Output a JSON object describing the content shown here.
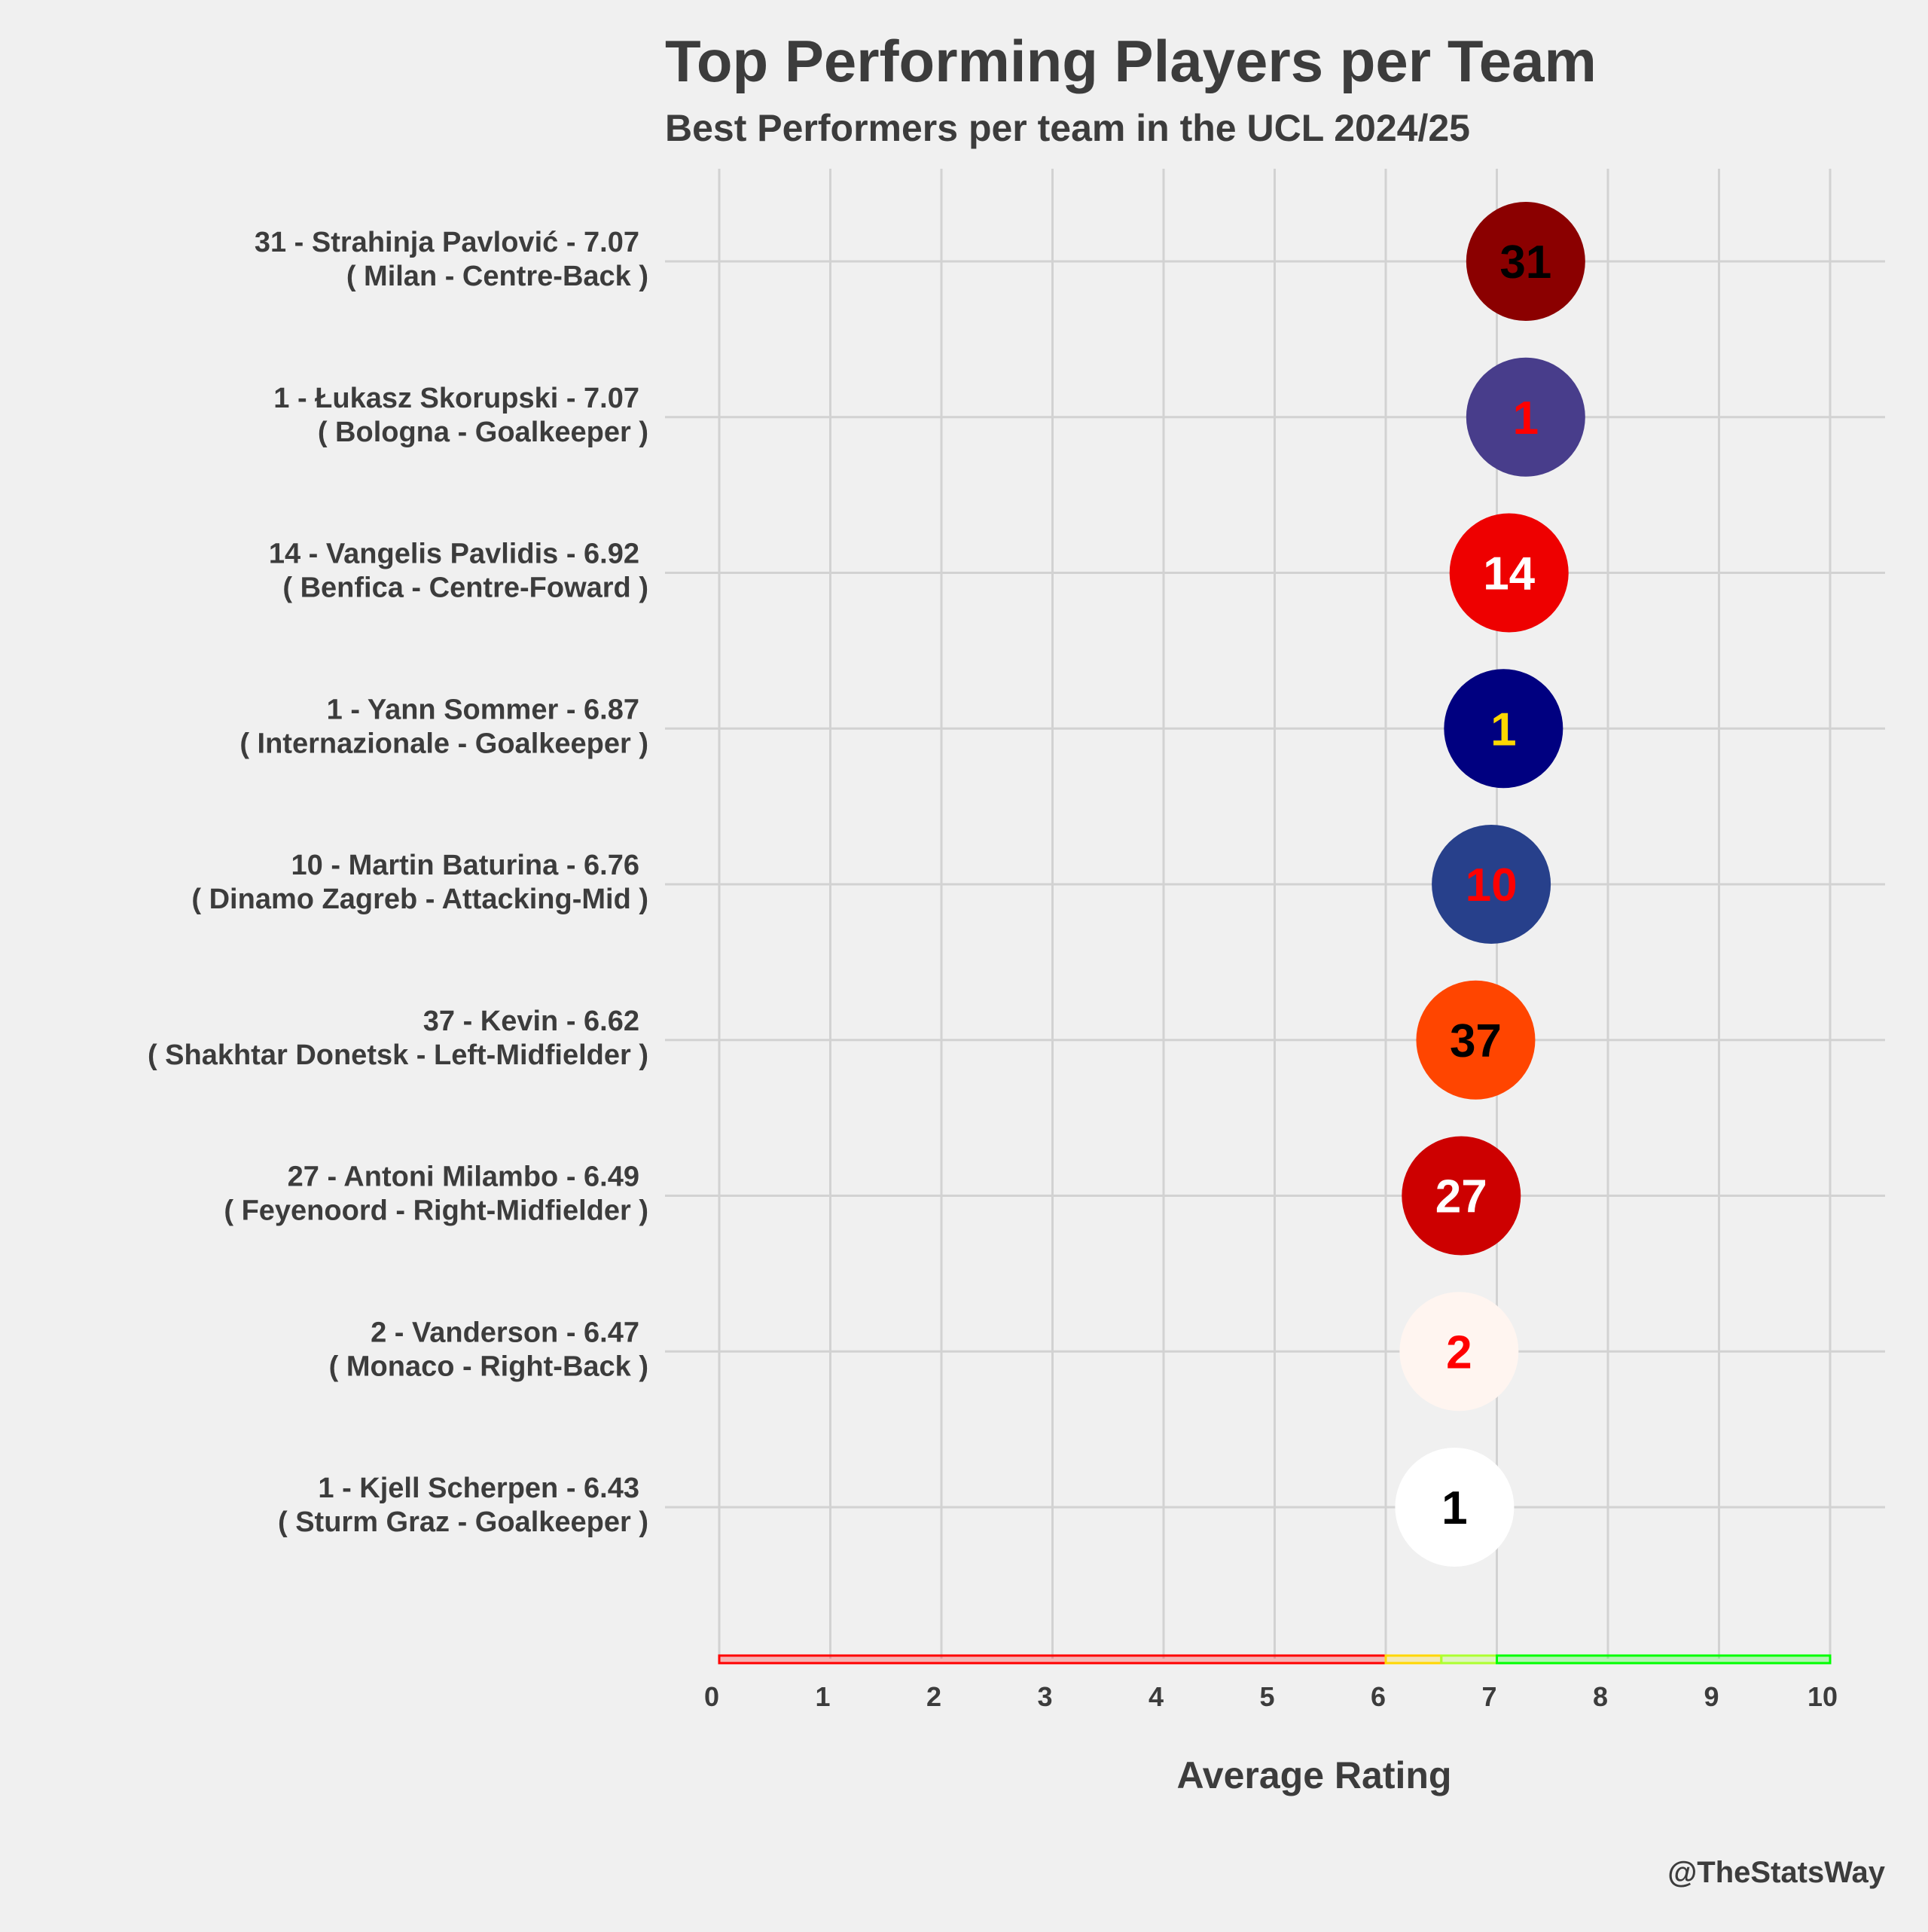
{
  "chart_data": {
    "type": "scatter",
    "title": "Top Performing Players per Team",
    "subtitle": "Best Performers per team in the UCL 2024/25",
    "xlabel": "Average Rating",
    "xlim": [
      0,
      10
    ],
    "x_ticks": [
      "0",
      "1",
      "2",
      "3",
      "4",
      "5",
      "6",
      "7",
      "8",
      "9",
      "10"
    ],
    "grid": true,
    "caption": "@TheStatsWay",
    "rating_bands": [
      {
        "from": 0,
        "to": 6,
        "color": "#ff0000"
      },
      {
        "from": 6,
        "to": 6.5,
        "color": "#ffd700"
      },
      {
        "from": 6.5,
        "to": 7,
        "color": "#adff2f"
      },
      {
        "from": 7,
        "to": 10,
        "color": "#00ff00"
      }
    ],
    "players": [
      {
        "label_line1": "31 - Strahinja Pavlović - 7.07",
        "label_line2": "( Milan - Centre-Back )",
        "number": "31",
        "rating": 7.07,
        "fill": "#8b0000",
        "text_color": "#000000"
      },
      {
        "label_line1": "1 - Łukasz Skorupski - 7.07",
        "label_line2": "( Bologna - Goalkeeper )",
        "number": "1",
        "rating": 7.07,
        "fill": "#483d8b",
        "text_color": "#ff0000"
      },
      {
        "label_line1": "14 - Vangelis Pavlidis - 6.92",
        "label_line2": "( Benfica - Centre-Foward )",
        "number": "14",
        "rating": 6.92,
        "fill": "#ee0000",
        "text_color": "#ffffff"
      },
      {
        "label_line1": "1 - Yann Sommer - 6.87",
        "label_line2": "( Internazionale - Goalkeeper )",
        "number": "1",
        "rating": 6.87,
        "fill": "#000080",
        "text_color": "#ffd700"
      },
      {
        "label_line1": "10 - Martin Baturina - 6.76",
        "label_line2": "( Dinamo Zagreb - Attacking-Mid )",
        "number": "10",
        "rating": 6.76,
        "fill": "#27408b",
        "text_color": "#ff0000"
      },
      {
        "label_line1": "37 - Kevin - 6.62",
        "label_line2": "( Shakhtar Donetsk - Left-Midfielder )",
        "number": "37",
        "rating": 6.62,
        "fill": "#ff4500",
        "text_color": "#000000"
      },
      {
        "label_line1": "27 - Antoni Milambo - 6.49",
        "label_line2": "( Feyenoord - Right-Midfielder )",
        "number": "27",
        "rating": 6.49,
        "fill": "#cd0000",
        "text_color": "#ffffff"
      },
      {
        "label_line1": "2 - Vanderson - 6.47",
        "label_line2": "( Monaco - Right-Back )",
        "number": "2",
        "rating": 6.47,
        "fill": "#fff5f0",
        "text_color": "#ff0000"
      },
      {
        "label_line1": "1 - Kjell Scherpen - 6.43",
        "label_line2": "( Sturm Graz - Goalkeeper )",
        "number": "1",
        "rating": 6.43,
        "fill": "#ffffff",
        "text_color": "#000000"
      }
    ]
  }
}
